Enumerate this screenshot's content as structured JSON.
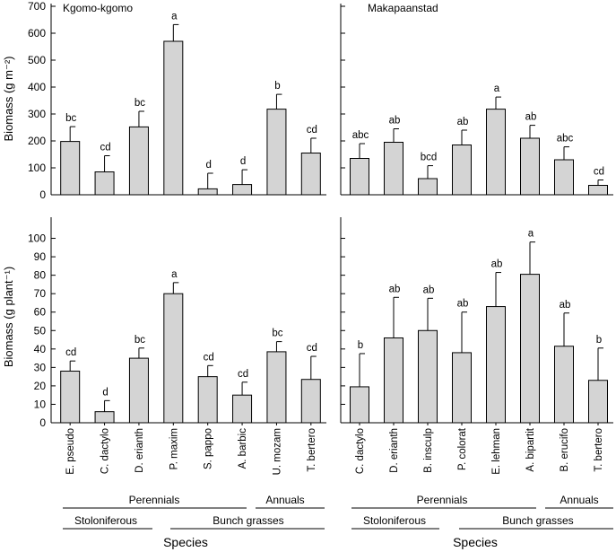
{
  "colors": {
    "bar_fill": "#d4d4d4",
    "stroke": "#000000"
  },
  "y_labels": {
    "top": "Biomass (g m⁻²)",
    "bottom": "Biomass (g plant⁻¹)"
  },
  "x_label": "Species",
  "groups": {
    "left": {
      "perennials": "Perennials",
      "annuals": "Annuals",
      "stoloniferous": "Stoloniferous",
      "bunch": "Bunch grasses"
    },
    "right": {
      "perennials": "Perennials",
      "annuals": "Annuals",
      "stoloniferous": "Stoloniferous",
      "bunch": "Bunch grasses"
    }
  },
  "chart_data": [
    {
      "type": "bar",
      "title": "Kgomo-kgomo",
      "ylabel": "Biomass (g m⁻²)",
      "ylim": [
        0,
        700
      ],
      "yticks": [
        0,
        100,
        200,
        300,
        400,
        500,
        600,
        700
      ],
      "categories": [
        "E. pseudo",
        "C. dactylo",
        "D. erianth",
        "P. maxim",
        "S. pappo",
        "A. barbic",
        "U. mozam",
        "T. bertero"
      ],
      "values": [
        198,
        85,
        252,
        570,
        22,
        38,
        318,
        155
      ],
      "errors": [
        55,
        60,
        58,
        62,
        58,
        55,
        55,
        55
      ],
      "letters": [
        "bc",
        "cd",
        "bc",
        "a",
        "d",
        "d",
        "b",
        "cd"
      ]
    },
    {
      "type": "bar",
      "title": "Makapaanstad",
      "ylabel": "",
      "ylim": [
        0,
        700
      ],
      "yticks": [
        0,
        100,
        200,
        300,
        400,
        500,
        600,
        700
      ],
      "categories": [
        "C. dactylo",
        "D. erianth",
        "B. insculp",
        "P. colorat",
        "E. lehman",
        "A. bipartit",
        "B. erucifo",
        "T. bertero"
      ],
      "values": [
        135,
        195,
        60,
        185,
        318,
        210,
        130,
        35
      ],
      "errors": [
        55,
        50,
        48,
        55,
        45,
        48,
        48,
        20
      ],
      "letters": [
        "abc",
        "ab",
        "bcd",
        "ab",
        "a",
        "ab",
        "abc",
        "cd"
      ]
    },
    {
      "type": "bar",
      "title": "",
      "ylabel": "Biomass (g plant⁻¹)",
      "ylim": [
        0,
        110
      ],
      "yticks": [
        0,
        10,
        20,
        30,
        40,
        50,
        60,
        70,
        80,
        90,
        100
      ],
      "categories": [
        "E. pseudo",
        "C. dactylo",
        "D. erianth",
        "P. maxim",
        "S. pappo",
        "A. barbic",
        "U. mozam",
        "T. bertero"
      ],
      "values": [
        28,
        6,
        35,
        70,
        25,
        15,
        38.5,
        23.5
      ],
      "errors": [
        5.5,
        6,
        5.5,
        6,
        6,
        7,
        5.5,
        12.5
      ],
      "letters": [
        "cd",
        "d",
        "bc",
        "a",
        "cd",
        "cd",
        "bc",
        "cd"
      ]
    },
    {
      "type": "bar",
      "title": "",
      "ylabel": "",
      "ylim": [
        0,
        110
      ],
      "yticks": [
        0,
        10,
        20,
        30,
        40,
        50,
        60,
        70,
        80,
        90,
        100
      ],
      "categories": [
        "C. dactylo",
        "D. erianth",
        "B. insculp",
        "P. colorat",
        "E. lehman",
        "A. bipartit",
        "B. erucifo",
        "T. bertero"
      ],
      "values": [
        19.5,
        46,
        50,
        38,
        63,
        80.5,
        41.5,
        23
      ],
      "errors": [
        18,
        22,
        17.5,
        22,
        18.5,
        17.5,
        18,
        17.5
      ],
      "letters": [
        "b",
        "ab",
        "ab",
        "ab",
        "ab",
        "a",
        "ab",
        "b"
      ]
    }
  ]
}
